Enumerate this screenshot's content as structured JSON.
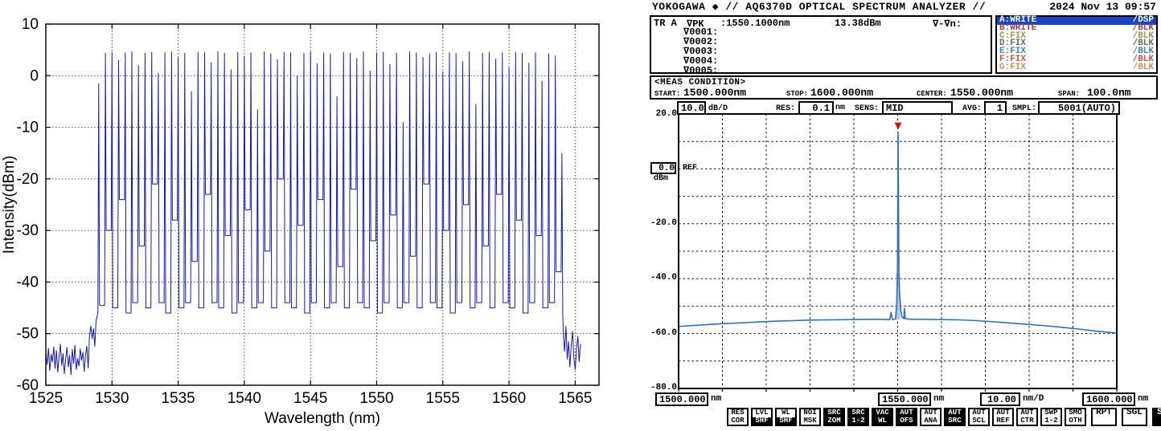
{
  "chart_data": [
    {
      "type": "line",
      "name": "frequency-comb-spectrum",
      "title": "",
      "xlabel": "Wavelength (nm)",
      "ylabel": "Intensity(dBm)",
      "xlim": [
        1525,
        1566.8
      ],
      "ylim": [
        -60,
        10
      ],
      "x_ticks": [
        1525,
        1530,
        1535,
        1540,
        1545,
        1550,
        1555,
        1560,
        1565
      ],
      "y_ticks": [
        10,
        0,
        -10,
        -20,
        -30,
        -40,
        -50,
        -60
      ],
      "grid": true,
      "line_color": "#1818a8",
      "comb": {
        "start_nm": 1529.0,
        "spacing_nm": 0.5,
        "peaks_dbm": [
          -1.5,
          4.4,
          4.6,
          3.0,
          4.5,
          4.7,
          2.0,
          4.4,
          4.6,
          0.5,
          4.5,
          4.7,
          3.5,
          4.4,
          -3.0,
          4.6,
          4.5,
          2.6,
          4.7,
          4.4,
          1.2,
          4.6,
          3.8,
          4.5,
          -6.5,
          4.7,
          4.3,
          3.2,
          4.6,
          4.5,
          0.0,
          4.4,
          4.7,
          2.4,
          4.5,
          4.3,
          -4.0,
          4.6,
          4.4,
          3.4,
          4.7,
          1.0,
          4.5,
          4.6,
          2.2,
          4.4,
          -9.0,
          4.7,
          4.5,
          3.6,
          4.3,
          4.6,
          0.8,
          4.5,
          4.4,
          2.8,
          4.7,
          -5.5,
          4.4,
          4.6,
          3.3,
          4.5,
          1.6,
          4.6,
          4.4,
          2.5,
          4.5,
          -1.0,
          4.3,
          3.9,
          -15.0
        ],
        "valleys_dbm": [
          -44.5,
          -30,
          -45,
          -24,
          -46,
          -44,
          -33,
          -45,
          -21,
          -44,
          -46,
          -28,
          -45,
          -44,
          -36,
          -45,
          -23,
          -44,
          -45,
          -31,
          -46,
          -44,
          -26,
          -45,
          -44,
          -34,
          -45,
          -20,
          -44,
          -45,
          -29,
          -46,
          -44,
          -24,
          -45,
          -44,
          -37,
          -45,
          -22,
          -44,
          -45,
          -32,
          -46,
          -44,
          -27,
          -45,
          -44,
          -35,
          -45,
          -21,
          -44,
          -45,
          -30,
          -46,
          -44,
          -25,
          -45,
          -44,
          -33,
          -45,
          -23,
          -44,
          -45,
          -28,
          -46,
          -44,
          -31,
          -45,
          -44,
          -38,
          -46
        ]
      },
      "left_noise": {
        "start_nm": 1525.0,
        "step_nm": 0.1,
        "values_dbm": [
          -53.5,
          -56.0,
          -52.8,
          -57.2,
          -54.0,
          -55.5,
          -52.5,
          -56.8,
          -53.2,
          -57.5,
          -54.5,
          -52.0,
          -56.2,
          -53.8,
          -57.8,
          -55.0,
          -52.6,
          -56.5,
          -54.2,
          -58.0,
          -53.0,
          -55.8,
          -52.2,
          -57.0,
          -54.8,
          -56.3,
          -52.9,
          -55.2,
          -53.6,
          -57.4,
          -54.1,
          -52.4,
          -56.7,
          -50.5,
          -48.5,
          -51.0,
          -49.0,
          -52.5,
          -47.5
        ]
      },
      "right_noise": {
        "start_nm": 1564.1,
        "step_nm": 0.1,
        "values_dbm": [
          -50.0,
          -53.5,
          -48.5,
          -55.0,
          -51.5,
          -56.5,
          -52.5,
          -49.5,
          -54.5,
          -57.0,
          -53.0,
          -50.5,
          -55.5,
          -52.0
        ]
      }
    },
    {
      "type": "line",
      "name": "osa-screen-trace",
      "xlim": [
        1500,
        1600
      ],
      "ylim": [
        -80,
        20
      ],
      "x_ticks_nm": [
        1500,
        1510,
        1520,
        1530,
        1540,
        1550,
        1560,
        1570,
        1580,
        1590,
        1600
      ],
      "y_ticks_dbm": [
        20,
        10,
        0,
        -10,
        -20,
        -30,
        -40,
        -50,
        -60,
        -70,
        -80
      ],
      "grid": true,
      "line_color": "#3070c0",
      "pedestal_fill": "#aecbe8",
      "points": [
        [
          1500,
          -57.4
        ],
        [
          1503,
          -57.1
        ],
        [
          1506,
          -56.8
        ],
        [
          1510,
          -56.4
        ],
        [
          1514,
          -56.1
        ],
        [
          1518,
          -55.8
        ],
        [
          1522,
          -55.5
        ],
        [
          1526,
          -55.3
        ],
        [
          1530,
          -55.1
        ],
        [
          1535,
          -55.0
        ],
        [
          1540,
          -54.9
        ],
        [
          1544,
          -54.8
        ],
        [
          1546,
          -54.8
        ],
        [
          1548.2,
          -54.9
        ],
        [
          1548.5,
          -52.3
        ],
        [
          1548.8,
          -54.9
        ],
        [
          1549.5,
          -54.7
        ],
        [
          1549.8,
          -49.0
        ],
        [
          1549.95,
          -40.0
        ],
        [
          1550.1,
          13.38
        ],
        [
          1550.3,
          -40.0
        ],
        [
          1550.45,
          -46.0
        ],
        [
          1550.7,
          -51.5
        ],
        [
          1551.0,
          -54.0
        ],
        [
          1551.4,
          -54.5
        ],
        [
          1551.55,
          -50.8
        ],
        [
          1551.7,
          -54.6
        ],
        [
          1553,
          -54.8
        ],
        [
          1556,
          -54.8
        ],
        [
          1560,
          -54.9
        ],
        [
          1564,
          -55.0
        ],
        [
          1568,
          -55.3
        ],
        [
          1572,
          -55.7
        ],
        [
          1576,
          -56.2
        ],
        [
          1580,
          -56.7
        ],
        [
          1584,
          -57.2
        ],
        [
          1588,
          -57.8
        ],
        [
          1592,
          -58.5
        ],
        [
          1596,
          -59.2
        ],
        [
          1600,
          -59.8
        ]
      ],
      "peak": {
        "wavelength_nm": 1550.1,
        "level_dbm": 13.38
      },
      "marker_color": "#dd1111"
    }
  ],
  "osa": {
    "header": {
      "brand": "YOKOGAWA",
      "diamond": "◆",
      "title": "// AQ6370D OPTICAL SPECTRUM ANALYZER //",
      "datetime": "2024 Nov 13 09:57"
    },
    "marker_panel": {
      "trace": "TR A",
      "mode": "∇PK",
      "wavelength": ":1550.1000nm",
      "level": "13.38dBm",
      "delta": "∇-∇n:",
      "rows": [
        "∇0001:",
        "∇0002:",
        "∇0003:",
        "∇0004:",
        "∇0005:"
      ]
    },
    "traces": [
      {
        "label": "A:WRITE",
        "status": "/DSP",
        "fg": "#ffffff",
        "bg": "#1545c8",
        "selected": true
      },
      {
        "label": "B:WRITE",
        "status": "/BLK",
        "fg": "#a04048",
        "bg": "",
        "selected": false
      },
      {
        "label": "C:FIX",
        "status": "/BLK",
        "fg": "#989840",
        "bg": "",
        "selected": false
      },
      {
        "label": "D:FIX",
        "status": "/BLK",
        "fg": "#6a6a6a",
        "bg": "",
        "selected": false
      },
      {
        "label": "E:FIX",
        "status": "/BLK",
        "fg": "#3a86c8",
        "bg": "",
        "selected": false
      },
      {
        "label": "F:FIX",
        "status": "/BLK",
        "fg": "#cc5540",
        "bg": "",
        "selected": false
      },
      {
        "label": "G:FIX",
        "status": "/BLK",
        "fg": "#cc9060",
        "bg": "",
        "selected": false
      }
    ],
    "meas_condition": {
      "heading": "<MEAS CONDITION>",
      "start_label": "START:",
      "start": "1500.000nm",
      "stop_label": "STOP:",
      "stop": "1600.000nm",
      "center_label": "CENTER:",
      "center": "1550.000nm",
      "span_label": "SPAN:",
      "span": "100.0nm"
    },
    "settings": {
      "level_scale": "10.0",
      "level_scale_unit": "dB/D",
      "res_label": "RES:",
      "res": "0.1",
      "res_unit": "nm",
      "sens_label": "SENS:",
      "sens": "MID",
      "avg_label": "AVG:",
      "avg": "1",
      "smpl_label": "SMPL:",
      "smpl": "5001(AUTO)"
    },
    "ref": {
      "value": "0.0",
      "unit": "dBm",
      "label": "REF"
    },
    "y_axis_labels": [
      "20.0",
      "-20.0",
      "-40.0",
      "-60.0",
      "-80.0"
    ],
    "x_axis": {
      "start": "1500.000",
      "start_unit": "nm",
      "center": "1550.000",
      "center_unit": "nm",
      "scale": "10.00",
      "scale_unit": "nm/D",
      "stop": "1600.000",
      "stop_unit": "nm"
    },
    "softkeys": [
      {
        "lines": [
          "RES",
          "COR"
        ],
        "style": "normal"
      },
      {
        "lines": [
          "LVL",
          "SHF"
        ],
        "style": "shift"
      },
      {
        "lines": [
          "WL",
          "SHF"
        ],
        "style": "shift"
      },
      {
        "lines": [
          "NOI",
          "MSK"
        ],
        "style": "normal"
      },
      {
        "lines": [
          "SRC",
          "ZOM"
        ],
        "style": "invert"
      },
      {
        "lines": [
          "SRC",
          "1-2"
        ],
        "style": "invert"
      },
      {
        "lines": [
          "VAC",
          "WL"
        ],
        "style": "invert"
      },
      {
        "lines": [
          "AUT",
          "OFS"
        ],
        "style": "invert"
      },
      {
        "lines": [
          "AUT",
          "ANA"
        ],
        "style": "normal"
      },
      {
        "lines": [
          "AUT",
          "SRC"
        ],
        "style": "invert"
      },
      {
        "lines": [
          "AUT",
          "SCL"
        ],
        "style": "normal"
      },
      {
        "lines": [
          "AUT",
          "REF"
        ],
        "style": "normal"
      },
      {
        "lines": [
          "AUT",
          "CTR"
        ],
        "style": "normal"
      },
      {
        "lines": [
          "SWP",
          "1-2"
        ],
        "style": "normal"
      },
      {
        "lines": [
          "SMO",
          "OTH"
        ],
        "style": "normal"
      },
      {
        "lines": [
          "RPT"
        ],
        "style": "big"
      },
      {
        "lines": [
          "SGL"
        ],
        "style": "big"
      },
      {
        "lines": [
          "STP"
        ],
        "style": "big-invert"
      }
    ]
  }
}
